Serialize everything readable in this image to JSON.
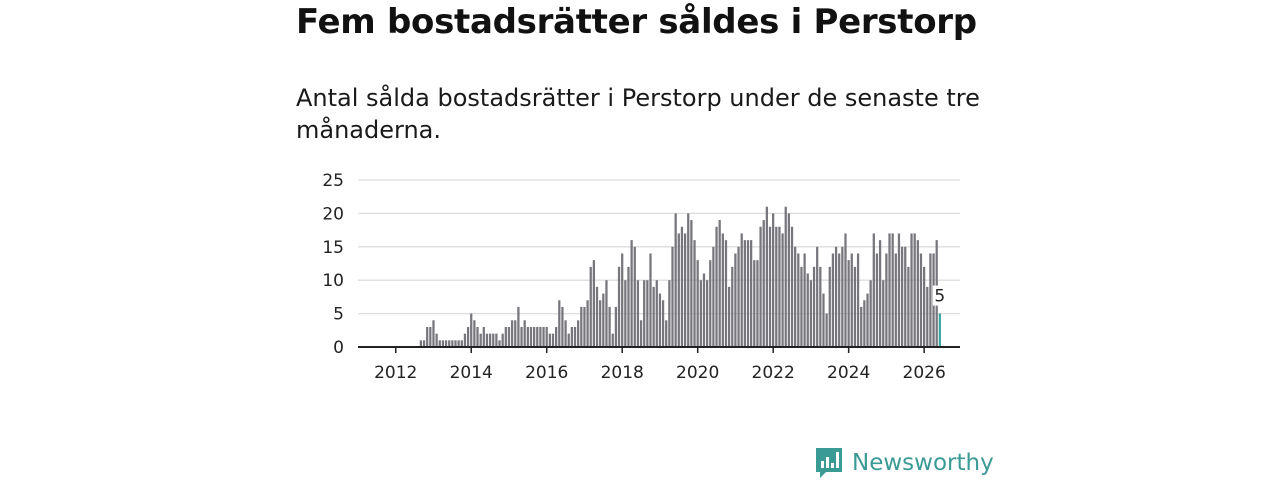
{
  "header": {
    "title": "Fem bostadsrätter såldes i Perstorp",
    "subtitle": "Antal sålda bostadsrätter i Perstorp under de senaste tre månaderna."
  },
  "brand": {
    "name": "Newsworthy"
  },
  "colors": {
    "bar": "#76767c",
    "highlight": "#3aa6a0",
    "grid": "#dddddd",
    "axis": "#222222",
    "brand": "#3a9a94"
  },
  "chart_data": {
    "type": "bar",
    "title": "Fem bostadsrätter såldes i Perstorp",
    "subtitle": "Antal sålda bostadsrätter i Perstorp under de senaste tre månaderna.",
    "xlabel": "",
    "ylabel": "",
    "x_start": 2011.5,
    "x_step": 0.08333,
    "xlim": [
      2011.0,
      2026.95
    ],
    "ylim": [
      0,
      25
    ],
    "yticks": [
      0,
      5,
      10,
      15,
      20,
      25
    ],
    "xticks": [
      2012,
      2014,
      2016,
      2018,
      2020,
      2022,
      2024,
      2026
    ],
    "grid": true,
    "values": [
      0,
      0,
      0,
      0,
      0,
      0,
      0,
      0,
      0,
      0,
      0,
      0,
      0,
      0,
      1,
      1,
      3,
      3,
      4,
      2,
      1,
      1,
      1,
      1,
      1,
      1,
      1,
      1,
      2,
      3,
      5,
      4,
      3,
      2,
      3,
      2,
      2,
      2,
      2,
      1,
      2,
      3,
      3,
      4,
      4,
      6,
      3,
      4,
      3,
      3,
      3,
      3,
      3,
      3,
      3,
      2,
      2,
      3,
      7,
      6,
      4,
      2,
      3,
      3,
      4,
      6,
      6,
      7,
      12,
      13,
      9,
      7,
      8,
      10,
      6,
      2,
      6,
      12,
      14,
      10,
      12,
      16,
      15,
      10,
      4,
      10,
      10,
      14,
      9,
      10,
      8,
      7,
      4,
      10,
      15,
      20,
      17,
      18,
      17,
      20,
      19,
      16,
      13,
      10,
      11,
      10,
      13,
      15,
      18,
      19,
      17,
      16,
      9,
      12,
      14,
      15,
      17,
      16,
      16,
      16,
      13,
      13,
      18,
      19,
      21,
      18,
      20,
      18,
      18,
      17,
      21,
      20,
      18,
      15,
      14,
      12,
      14,
      11,
      10,
      12,
      15,
      12,
      8,
      5,
      12,
      14,
      15,
      14,
      15,
      17,
      13,
      14,
      12,
      14,
      6,
      7,
      8,
      10,
      17,
      14,
      16,
      10,
      14,
      17,
      17,
      14,
      17,
      15,
      15,
      12,
      17,
      17,
      16,
      14,
      12,
      9,
      14,
      14,
      16,
      5
    ],
    "highlight_last": true,
    "annotation": {
      "label": "5",
      "value": 5
    }
  }
}
